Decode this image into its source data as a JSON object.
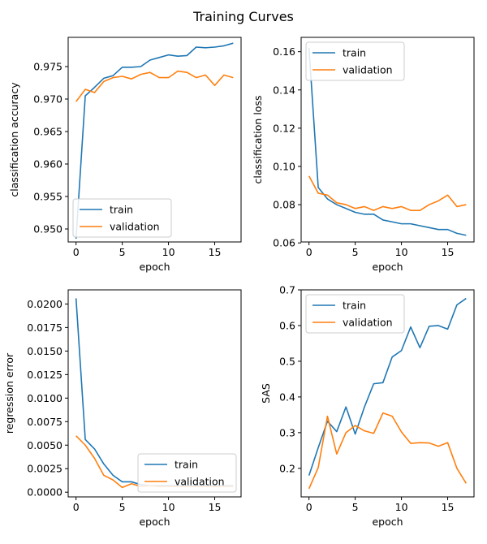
{
  "figure": {
    "title": "Training Curves"
  },
  "colors": {
    "train": "#1f77b4",
    "validation": "#ff7f0e",
    "axes": "#000000",
    "background": "#ffffff",
    "legend_border": "#cccccc"
  },
  "chart_data": [
    {
      "type": "line",
      "xlabel": "epoch",
      "ylabel": "classification accuracy",
      "xlim": [
        -0.85,
        17.85
      ],
      "ylim": [
        0.948,
        0.9795
      ],
      "xticks": [
        0,
        5,
        10,
        15
      ],
      "yticks": [
        0.95,
        0.955,
        0.96,
        0.965,
        0.97,
        0.975
      ],
      "ytick_labels": [
        "0.950",
        "0.955",
        "0.960",
        "0.965",
        "0.970",
        "0.975"
      ],
      "legend": "lower-left",
      "grid": false,
      "x": [
        0,
        1,
        2,
        3,
        4,
        5,
        6,
        7,
        8,
        9,
        10,
        11,
        12,
        13,
        14,
        15,
        16,
        17
      ],
      "series": [
        {
          "name": "train",
          "values": [
            0.9485,
            0.9705,
            0.9718,
            0.9732,
            0.9736,
            0.9749,
            0.9749,
            0.975,
            0.976,
            0.9764,
            0.9768,
            0.9766,
            0.9767,
            0.978,
            0.9779,
            0.978,
            0.9782,
            0.9786
          ]
        },
        {
          "name": "validation",
          "values": [
            0.9696,
            0.9715,
            0.971,
            0.9727,
            0.9733,
            0.9735,
            0.9731,
            0.9738,
            0.9741,
            0.9733,
            0.9733,
            0.9743,
            0.9741,
            0.9733,
            0.9737,
            0.9721,
            0.9737,
            0.9733
          ]
        }
      ]
    },
    {
      "type": "line",
      "xlabel": "epoch",
      "ylabel": "classification loss",
      "xlim": [
        -0.85,
        17.85
      ],
      "ylim": [
        0.0605,
        0.1675
      ],
      "xticks": [
        0,
        5,
        10,
        15
      ],
      "yticks": [
        0.06,
        0.08,
        0.1,
        0.12,
        0.14,
        0.16
      ],
      "ytick_labels": [
        "0.06",
        "0.08",
        "0.10",
        "0.12",
        "0.14",
        "0.16"
      ],
      "legend": "top-left",
      "grid": false,
      "x": [
        0,
        1,
        2,
        3,
        4,
        5,
        6,
        7,
        8,
        9,
        10,
        11,
        12,
        13,
        14,
        15,
        16,
        17
      ],
      "series": [
        {
          "name": "train",
          "values": [
            0.162,
            0.089,
            0.083,
            0.08,
            0.078,
            0.076,
            0.075,
            0.075,
            0.072,
            0.071,
            0.07,
            0.07,
            0.069,
            0.068,
            0.067,
            0.067,
            0.065,
            0.064
          ]
        },
        {
          "name": "validation",
          "values": [
            0.095,
            0.086,
            0.085,
            0.081,
            0.08,
            0.078,
            0.079,
            0.077,
            0.079,
            0.078,
            0.079,
            0.077,
            0.077,
            0.08,
            0.082,
            0.085,
            0.079,
            0.08
          ]
        }
      ]
    },
    {
      "type": "line",
      "xlabel": "epoch",
      "ylabel": "regression error",
      "xlim": [
        -0.85,
        17.85
      ],
      "ylim": [
        -0.0005,
        0.0215
      ],
      "xticks": [
        0,
        5,
        10,
        15
      ],
      "yticks": [
        0.0,
        0.0025,
        0.005,
        0.0075,
        0.01,
        0.0125,
        0.015,
        0.0175,
        0.02
      ],
      "ytick_labels": [
        "0.0000",
        "0.0025",
        "0.0050",
        "0.0075",
        "0.0100",
        "0.0125",
        "0.0150",
        "0.0175",
        "0.0200"
      ],
      "legend": "lower-right",
      "grid": false,
      "x": [
        0,
        1,
        2,
        3,
        4,
        5,
        6,
        7,
        8,
        9,
        10,
        11,
        12,
        13,
        14,
        15,
        16,
        17
      ],
      "series": [
        {
          "name": "train",
          "values": [
            0.0206,
            0.0056,
            0.0046,
            0.003,
            0.0018,
            0.0011,
            0.0011,
            0.0008,
            0.0007,
            0.0007,
            0.0007,
            0.0007,
            0.0007,
            0.0007,
            0.0007,
            0.0007,
            0.0007,
            0.0007
          ]
        },
        {
          "name": "validation",
          "values": [
            0.006,
            0.005,
            0.0036,
            0.0018,
            0.0013,
            0.0005,
            0.0009,
            0.0006,
            0.0007,
            0.0006,
            0.0006,
            0.0006,
            0.0006,
            0.0006,
            0.0006,
            0.0006,
            0.0006,
            0.0006
          ]
        }
      ]
    },
    {
      "type": "line",
      "xlabel": "epoch",
      "ylabel": "SAS",
      "xlim": [
        -0.85,
        17.85
      ],
      "ylim": [
        0.12,
        0.7
      ],
      "xticks": [
        0,
        5,
        10,
        15
      ],
      "yticks": [
        0.2,
        0.3,
        0.4,
        0.5,
        0.6,
        0.7
      ],
      "ytick_labels": [
        "0.2",
        "0.3",
        "0.4",
        "0.5",
        "0.6",
        "0.7"
      ],
      "legend": "top-left",
      "grid": false,
      "x": [
        0,
        1,
        2,
        3,
        4,
        5,
        6,
        7,
        8,
        9,
        10,
        11,
        12,
        13,
        14,
        15,
        16,
        17
      ],
      "series": [
        {
          "name": "train",
          "values": [
            0.18,
            0.258,
            0.332,
            0.303,
            0.372,
            0.296,
            0.372,
            0.437,
            0.44,
            0.512,
            0.53,
            0.596,
            0.538,
            0.598,
            0.6,
            0.59,
            0.658,
            0.676
          ]
        },
        {
          "name": "validation",
          "values": [
            0.143,
            0.202,
            0.346,
            0.24,
            0.3,
            0.32,
            0.305,
            0.298,
            0.355,
            0.346,
            0.302,
            0.27,
            0.272,
            0.271,
            0.262,
            0.272,
            0.2,
            0.158
          ]
        }
      ]
    }
  ]
}
